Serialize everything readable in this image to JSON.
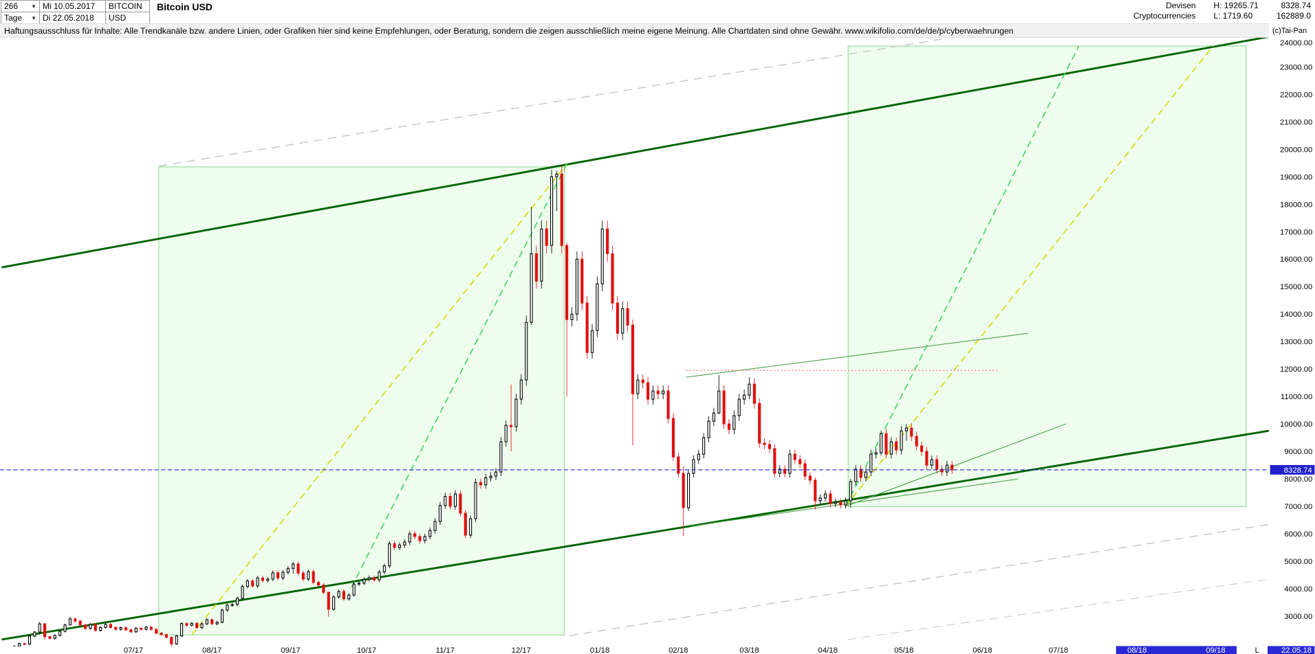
{
  "header": {
    "bars_count": "266",
    "period": "Tage",
    "start_date": "Mi 10.05.2017",
    "end_date": "Di 22.05.2018",
    "symbol": "BITCOIN",
    "currency": "USD",
    "title": "Bitcoin USD",
    "category_line1": "Devisen",
    "category_line2": "Cryptocurrencies",
    "high_label": "H: 19265.71",
    "low_label": "L: 1719.60",
    "last_price_text": "8328.74",
    "volume_text": "162889.0",
    "copyright": "(c)Tai-Pan"
  },
  "disclaimer": "Haftungsausschluss für Inhalte: Alle Trendkanäle bzw. andere Linien, oder Grafiken hier sind keine Empfehlungen, oder Beratung, sondern die zeigen ausschließlich meine eigene Meinung. Alle Chartdaten sind ohne Gewähr.  www.wikifolio.com/de/de/p/cyberwaehrungen",
  "chart_data": {
    "type": "candlestick",
    "title": "Bitcoin USD",
    "instrument": "BITCOIN USD",
    "period_high": 19265.71,
    "period_low": 1719.6,
    "current_price": 8328.74,
    "current_price_label": "8328.74",
    "y_axis": {
      "side": "right",
      "ticks": [
        24000,
        23000,
        22000,
        21000,
        20000,
        19000,
        18000,
        17000,
        16000,
        15000,
        14000,
        13000,
        12000,
        11000,
        10000,
        9000,
        8000,
        7000,
        6000,
        5000,
        4000,
        3000
      ]
    },
    "x_axis": {
      "months": [
        {
          "text": "07/17",
          "day": 52,
          "hl": false
        },
        {
          "text": "08/17",
          "day": 83,
          "hl": false
        },
        {
          "text": "09/17",
          "day": 114,
          "hl": false
        },
        {
          "text": "10/17",
          "day": 144,
          "hl": false
        },
        {
          "text": "11/17",
          "day": 175,
          "hl": false
        },
        {
          "text": "12/17",
          "day": 205,
          "hl": false
        },
        {
          "text": "01/18",
          "day": 236,
          "hl": false
        },
        {
          "text": "02/18",
          "day": 267,
          "hl": false
        },
        {
          "text": "03/18",
          "day": 295,
          "hl": false
        },
        {
          "text": "04/18",
          "day": 326,
          "hl": false
        },
        {
          "text": "05/18",
          "day": 356,
          "hl": false
        },
        {
          "text": "06/18",
          "day": 387,
          "hl": false
        },
        {
          "text": "07/18",
          "day": 417,
          "hl": false
        },
        {
          "text": "08/18",
          "day": 448,
          "hl": true
        },
        {
          "text": "09/18",
          "day": 479,
          "hl": true
        }
      ],
      "l_marker": "L",
      "last_date_label": "22.05.18"
    },
    "series": {
      "start_date_label": "Mi 10.05.2017",
      "end_date_label": "Di 22.05.2018",
      "bar_days": 2,
      "first_open": 1725,
      "wick_pct": 0.018,
      "closes": [
        1770,
        1820,
        1900,
        2000,
        1980,
        2270,
        2420,
        2720,
        2250,
        2190,
        2300,
        2450,
        2680,
        2900,
        2820,
        2680,
        2550,
        2700,
        2480,
        2590,
        2700,
        2590,
        2520,
        2580,
        2500,
        2430,
        2560,
        2520,
        2600,
        2520,
        2380,
        2330,
        2230,
        1990,
        2280,
        2730,
        2670,
        2740,
        2580,
        2720,
        2870,
        2720,
        2780,
        3220,
        3400,
        3420,
        3650,
        4080,
        4280,
        4100,
        4390,
        4300,
        4350,
        4580,
        4390,
        4600,
        4740,
        4900,
        4570,
        4350,
        4620,
        4230,
        4130,
        3870,
        3250,
        3700,
        3900,
        3630,
        3770,
        4170,
        4200,
        4340,
        4400,
        4320,
        4610,
        4830,
        5640,
        5500,
        5590,
        5700,
        6000,
        5900,
        5750,
        5900,
        6120,
        6450,
        7030,
        7360,
        7000,
        7450,
        6750,
        5950,
        6550,
        7870,
        7780,
        8040,
        8100,
        8250,
        9350,
        9950,
        9900,
        10900,
        11600,
        13700,
        16200,
        15200,
        17100,
        16500,
        19000,
        19100,
        16500,
        13800,
        14000,
        16000,
        14400,
        12600,
        13400,
        15100,
        17100,
        16200,
        14400,
        13300,
        14200,
        13600,
        11100,
        11600,
        11500,
        10900,
        11200,
        11100,
        11200,
        10200,
        8800,
        8200,
        6950,
        8200,
        8700,
        8900,
        9500,
        10100,
        10400,
        11200,
        10000,
        9800,
        10300,
        10900,
        11050,
        11450,
        10750,
        9300,
        9250,
        9100,
        8200,
        8350,
        8200,
        8900,
        8700,
        8550,
        8100,
        7950,
        7200,
        7300,
        7450,
        7100,
        7150,
        7050,
        7200,
        7900,
        8350,
        8050,
        8250,
        8900,
        8950,
        9650,
        8900,
        9350,
        9050,
        9750,
        9850,
        9550,
        9200,
        9000,
        8500,
        8700,
        8350,
        8250,
        8500,
        8328.74
      ],
      "wick_overrides": {
        "0": [
          1790,
          1719.6
        ],
        "7": [
          2790,
          2330
        ],
        "8": [
          2760,
          2150
        ],
        "13": [
          2980,
          2750
        ],
        "33": [
          2260,
          1830
        ],
        "57": [
          4980,
          4550
        ],
        "64": [
          3880,
          2980
        ],
        "100": [
          11440,
          9000
        ],
        "104": [
          17900,
          13600
        ],
        "108": [
          19265.71,
          16200
        ],
        "109": [
          19220,
          17750
        ],
        "111": [
          16600,
          11000
        ],
        "124": [
          13800,
          9222
        ],
        "134": [
          8450,
          5920
        ],
        "141": [
          11780,
          10350
        ],
        "147": [
          11700,
          10900
        ],
        "160": [
          8050,
          6880
        ],
        "167": [
          8000,
          6950
        ],
        "173": [
          9760,
          8850
        ],
        "178": [
          9990,
          9380
        ]
      }
    },
    "channel_boxes": [
      {
        "name": "trend-box-2017-rally",
        "d1": 62,
        "d2": 222,
        "p1": 2315,
        "p2": 19360
      },
      {
        "name": "trend-box-2018-projection",
        "d1": 334,
        "d2": 491,
        "p1": 6990,
        "p2": 23760
      }
    ],
    "trend_lines": [
      {
        "name": "channel-lower-line",
        "d1": 0,
        "p1": 2150,
        "d2": 500,
        "p2": 9750,
        "color": "#006400",
        "w": 2.4,
        "dash": ""
      },
      {
        "name": "channel-upper-line",
        "d1": 0,
        "p1": 15700,
        "d2": 500,
        "p2": 24100,
        "color": "#006400",
        "w": 2.4,
        "dash": ""
      },
      {
        "name": "rally-trend-yellow-dashed",
        "d1": 75,
        "p1": 2315,
        "d2": 223,
        "p2": 19470,
        "color": "#d8d800",
        "w": 1.3,
        "dash": "8,5"
      },
      {
        "name": "rally-trend-green-dashed",
        "d1": 138,
        "p1": 4050,
        "d2": 223,
        "p2": 19470,
        "color": "#3cd65a",
        "w": 1.3,
        "dash": "8,5"
      },
      {
        "name": "projection-green-dashed",
        "d1": 333,
        "p1": 7000,
        "d2": 425,
        "p2": 23760,
        "color": "#3cd65a",
        "w": 1.3,
        "dash": "8,5"
      },
      {
        "name": "projection-yellow-dashed",
        "d1": 333,
        "p1": 7000,
        "d2": 478,
        "p2": 23760,
        "color": "#d8d800",
        "w": 1.3,
        "dash": "8,5"
      },
      {
        "name": "gray-dashed-upper",
        "d1": 62,
        "p1": 19390,
        "d2": 372,
        "p2": 24030,
        "color": "#c6c6c6",
        "w": 1.2,
        "dash": "10,7"
      },
      {
        "name": "gray-dashed-lower-1",
        "d1": 224,
        "p1": 2290,
        "d2": 500,
        "p2": 6340,
        "color": "#c6c6c6",
        "w": 1.2,
        "dash": "10,7"
      },
      {
        "name": "gray-dashed-lower-2",
        "d1": 334,
        "p1": 2150,
        "d2": 500,
        "p2": 4350,
        "color": "#d2d2d2",
        "w": 1.1,
        "dash": "10,7"
      },
      {
        "name": "mid-resistance-green",
        "d1": 270,
        "p1": 11700,
        "d2": 405,
        "p2": 13300,
        "color": "#4a9e4a",
        "w": 0.9,
        "dash": ""
      },
      {
        "name": "low-support-green",
        "d1": 272,
        "p1": 6280,
        "d2": 401,
        "p2": 7995,
        "color": "#4a9e4a",
        "w": 0.9,
        "dash": ""
      },
      {
        "name": "fan-line-from-april-low",
        "d1": 333,
        "p1": 7000,
        "d2": 420,
        "p2": 10000,
        "color": "#4a9e4a",
        "w": 0.9,
        "dash": ""
      },
      {
        "name": "red-dotted-resistance",
        "d1": 270,
        "p1": 11950,
        "d2": 393,
        "p2": 11950,
        "color": "#ff6b6b",
        "w": 1.0,
        "dash": "1.6,2.6"
      }
    ],
    "colors": {
      "up_candle": "#000000",
      "down_candle": "#e01010",
      "box_fill": "#e2fbe2",
      "box_stroke": "#90e090",
      "current_price_blue": "#2020cc",
      "axis_highlight_blue": "#2929d6"
    }
  }
}
